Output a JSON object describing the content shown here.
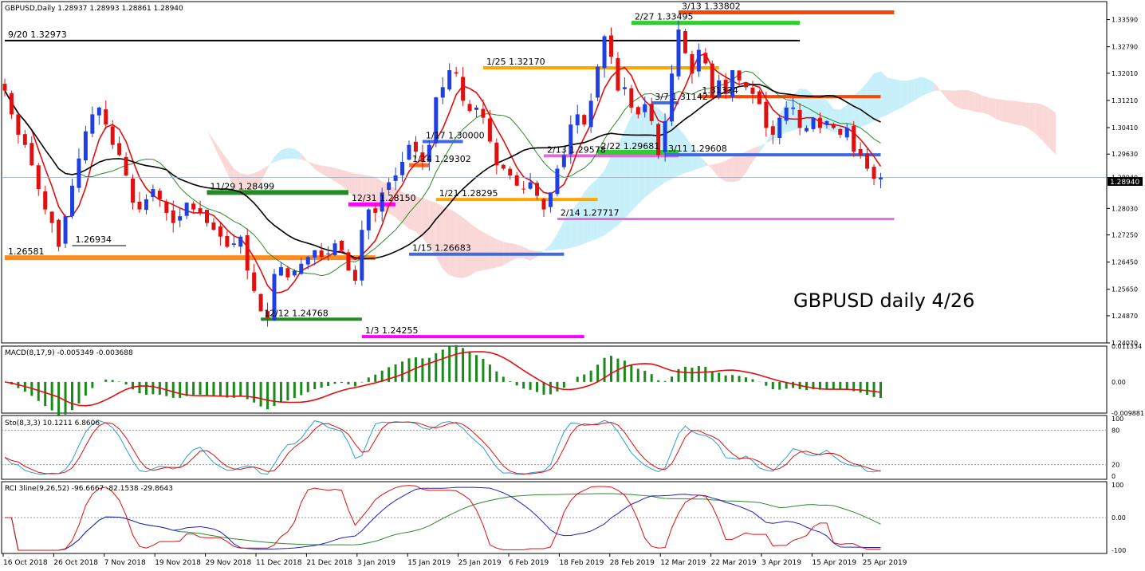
{
  "header": {
    "symbol_info": "GBPUSD,Daily  1.28937 1.28993 1.28861 1.28940",
    "watermark": "GBPUSD daily 4/26",
    "current_price": "1.28940"
  },
  "colors": {
    "bull": "#1f3fe0",
    "bear": "#e01010",
    "tenkan": "#e01010",
    "kijun": "#2a8a2a",
    "sma": "#000000",
    "kumo_bull": "#c8f0fa",
    "kumo_bear": "#fbd8d8",
    "macd_hist": "#1a8a1a",
    "macd_signal": "#e01010",
    "sto_main": "#2a9fd0",
    "sto_signal": "#e01010",
    "rci_fast": "#e01010",
    "rci_mid": "#2020c0",
    "rci_slow": "#2a8a2a"
  },
  "price_axis": [
    "1.33590",
    "1.32790",
    "1.32010",
    "1.31210",
    "1.30410",
    "1.29630",
    "1.28940",
    "1.28030",
    "1.27250",
    "1.26450",
    "1.25650",
    "1.24870",
    "1.24070"
  ],
  "date_axis": [
    "16 Oct 2018",
    "26 Oct 2018",
    "7 Nov 2018",
    "19 Nov 2018",
    "29 Nov 2018",
    "11 Dec 2018",
    "21 Dec 2018",
    "3 Jan 2019",
    "15 Jan 2019",
    "25 Jan 2019",
    "6 Feb 2019",
    "18 Feb 2019",
    "28 Feb 2019",
    "12 Mar 2019",
    "22 Mar 2019",
    "3 Apr 2019",
    "15 Apr 2019",
    "25 Apr 2019"
  ],
  "chart_data": [
    {
      "type": "candlestick",
      "title": "GBPUSD,Daily",
      "ylim": [
        1.2407,
        1.3412
      ],
      "sample_closes": [
        1.315,
        1.308,
        1.302,
        1.299,
        1.293,
        1.286,
        1.28,
        1.276,
        1.269,
        1.278,
        1.287,
        1.295,
        1.303,
        1.308,
        1.31,
        1.305,
        1.299,
        1.296,
        1.29,
        1.282,
        1.28,
        1.283,
        1.286,
        1.283,
        1.279,
        1.276,
        1.278,
        1.282,
        1.28,
        1.279,
        1.276,
        1.274,
        1.272,
        1.269,
        1.27,
        1.272,
        1.262,
        1.256,
        1.25,
        1.248,
        1.261,
        1.263,
        1.26,
        1.262,
        1.264,
        1.266,
        1.268,
        1.266,
        1.267,
        1.27,
        1.268,
        1.262,
        1.259,
        1.274,
        1.28,
        1.279,
        1.285,
        1.288,
        1.29,
        1.294,
        1.299,
        1.297,
        1.294,
        1.299,
        1.313,
        1.316,
        1.321,
        1.32,
        1.312,
        1.309,
        1.31,
        1.307,
        1.3,
        1.293,
        1.292,
        1.29,
        1.287,
        1.286,
        1.288,
        1.284,
        1.28,
        1.285,
        1.292,
        1.296,
        1.305,
        1.308,
        1.305,
        1.312,
        1.322,
        1.331,
        1.325,
        1.315,
        1.316,
        1.31,
        1.308,
        1.311,
        1.306,
        1.296,
        1.306,
        1.32,
        1.333,
        1.326,
        1.32,
        1.327,
        1.323,
        1.313,
        1.318,
        1.314,
        1.321,
        1.318,
        1.316,
        1.314,
        1.311,
        1.304,
        1.302,
        1.307,
        1.31,
        1.31,
        1.304,
        1.304,
        1.307,
        1.304,
        1.306,
        1.304,
        1.302,
        1.304,
        1.297,
        1.296,
        1.292,
        1.289,
        1.2894
      ]
    },
    {
      "type": "annotations",
      "levels": [
        {
          "label": "9/20 1.32973",
          "price": 1.32973,
          "color": "#000000"
        },
        {
          "label": "3/13 1.33802",
          "price": 1.33802,
          "color": "#ff4500"
        },
        {
          "label": "2/27 1.33495",
          "price": 1.33495,
          "color": "#32cd32"
        },
        {
          "label": "1/25 1.32170",
          "price": 1.3217,
          "color": "#ffa500"
        },
        {
          "label": "3/7 1.31142",
          "price": 1.31142,
          "color": "#4169e1"
        },
        {
          "label": "1.31324",
          "price": 1.31324,
          "color": "#ff4500"
        },
        {
          "label": "1/17 1.30000",
          "price": 1.3,
          "color": "#4169e1"
        },
        {
          "label": "2/13 1.29578",
          "price": 1.29578,
          "color": "#da70d6"
        },
        {
          "label": "2/22 1.29681",
          "price": 1.29681,
          "color": "#32cd32"
        },
        {
          "label": "3/11 1.29608",
          "price": 1.29608,
          "color": "#4169e1"
        },
        {
          "label": "1/14 1.29302",
          "price": 1.29302,
          "color": "#ff6a1a"
        },
        {
          "label": "11/29 1.28499",
          "price": 1.28499,
          "color": "#228b22"
        },
        {
          "label": "12/31 1.28150",
          "price": 1.2815,
          "color": "#ff00ff"
        },
        {
          "label": "1/21 1.28295",
          "price": 1.28295,
          "color": "#ffa500"
        },
        {
          "label": "2/14 1.27717",
          "price": 1.27717,
          "color": "#da70d6"
        },
        {
          "label": "1.26934",
          "price": 1.26934,
          "color": "#000000"
        },
        {
          "label": "1.26581",
          "price": 1.26581,
          "color": "#ff8c1a"
        },
        {
          "label": "1/15 1.26683",
          "price": 1.26683,
          "color": "#4169e1"
        },
        {
          "label": "12/12 1.24768",
          "price": 1.24768,
          "color": "#228b22"
        },
        {
          "label": "1/3 1.24255",
          "price": 1.24255,
          "color": "#ff00ff"
        }
      ]
    },
    {
      "type": "bar",
      "title": "MACD(8,17,9) -0.005349 -0.003688",
      "ylim": [
        -0.009881,
        0.011334
      ],
      "ticks": [
        "0.011334",
        "0.00",
        "-0.009881"
      ]
    },
    {
      "type": "line",
      "title": "Sto(8,3,3) 10.1211 6.8606",
      "ylim": [
        0,
        100
      ],
      "ticks": [
        "100",
        "80",
        "20",
        "0"
      ]
    },
    {
      "type": "line",
      "title": "RCI 3line(9,26,52) -96.6667 -82.1538 -29.8643",
      "ylim": [
        -100,
        100
      ],
      "ticks": [
        "100",
        "0.00",
        "-100"
      ]
    }
  ]
}
